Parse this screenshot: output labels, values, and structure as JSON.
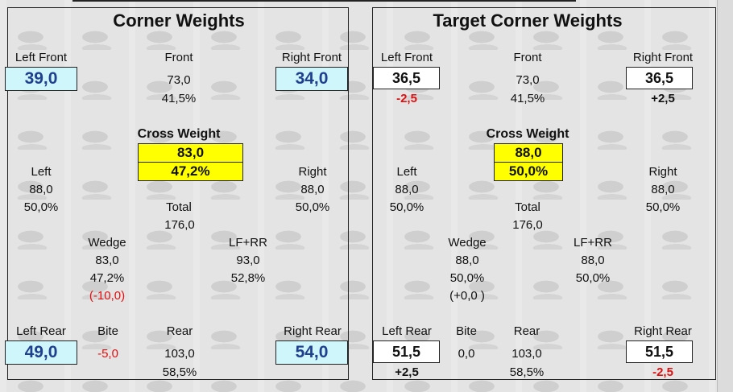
{
  "corner": {
    "title": "Corner Weights",
    "lf_label": "Left Front",
    "lf_value": "39,0",
    "rf_label": "Right Front",
    "rf_value": "34,0",
    "front_label": "Front",
    "front_value": "73,0",
    "front_pct": "41,5%",
    "cross_label": "Cross Weight",
    "cross_value": "83,0",
    "cross_pct": "47,2%",
    "left_label": "Left",
    "left_value": "88,0",
    "left_pct": "50,0%",
    "right_label": "Right",
    "right_value": "88,0",
    "right_pct": "50,0%",
    "total_label": "Total",
    "total_value": "176,0",
    "wedge_label": "Wedge",
    "wedge_value": "83,0",
    "wedge_pct": "47,2%",
    "wedge_delta": "(-10,0)",
    "lfrr_label": "LF+RR",
    "lfrr_value": "93,0",
    "lfrr_pct": "52,8%",
    "lr_label": "Left Rear",
    "lr_value": "49,0",
    "bite_label": "Bite",
    "bite_value": "-5,0",
    "rear_label": "Rear",
    "rear_value": "103,0",
    "rear_pct": "58,5%",
    "rr_label": "Right Rear",
    "rr_value": "54,0"
  },
  "target": {
    "title": "Target Corner Weights",
    "lf_label": "Left Front",
    "lf_value": "36,5",
    "lf_delta": "-2,5",
    "rf_label": "Right Front",
    "rf_value": "36,5",
    "rf_delta": "+2,5",
    "front_label": "Front",
    "front_value": "73,0",
    "front_pct": "41,5%",
    "cross_label": "Cross Weight",
    "cross_value": "88,0",
    "cross_pct": "50,0%",
    "left_label": "Left",
    "left_value": "88,0",
    "left_pct": "50,0%",
    "right_label": "Right",
    "right_value": "88,0",
    "right_pct": "50,0%",
    "total_label": "Total",
    "total_value": "176,0",
    "wedge_label": "Wedge",
    "wedge_value": "88,0",
    "wedge_pct": "50,0%",
    "wedge_delta": "(+0,0 )",
    "lfrr_label": "LF+RR",
    "lfrr_value": "88,0",
    "lfrr_pct": "50,0%",
    "lr_label": "Left Rear",
    "lr_value": "51,5",
    "lr_delta": "+2,5",
    "bite_label": "Bite",
    "bite_value": "0,0",
    "rear_label": "Rear",
    "rear_value": "103,0",
    "rear_pct": "58,5%",
    "rr_label": "Right Rear",
    "rr_value": "51,5",
    "rr_delta": "-2,5"
  },
  "colors": {
    "value_box": "#cff7fb",
    "cross_box": "#ffff00",
    "negative": "#e01010",
    "value_text": "#1f3f8f"
  }
}
